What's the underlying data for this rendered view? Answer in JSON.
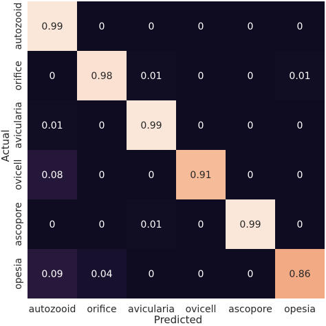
{
  "chart_data": {
    "type": "heatmap",
    "title": "",
    "xlabel": "Predicted",
    "ylabel": "Actual",
    "x_categories": [
      "autozooid",
      "orifice",
      "avicularia",
      "ovicell",
      "ascopore",
      "opesia"
    ],
    "y_categories": [
      "autozooid",
      "orifice",
      "avicularia",
      "ovicell",
      "ascopore",
      "opesia"
    ],
    "values": [
      [
        0.99,
        0,
        0,
        0,
        0,
        0
      ],
      [
        0,
        0.98,
        0.01,
        0,
        0,
        0.01
      ],
      [
        0.01,
        0,
        0.99,
        0,
        0,
        0
      ],
      [
        0.08,
        0,
        0,
        0.91,
        0,
        0
      ],
      [
        0,
        0,
        0.01,
        0,
        0.99,
        0
      ],
      [
        0.09,
        0.04,
        0,
        0,
        0,
        0.86
      ]
    ],
    "value_labels": [
      [
        "0.99",
        "0",
        "0",
        "0",
        "0",
        "0"
      ],
      [
        "0",
        "0.98",
        "0.01",
        "0",
        "0",
        "0.01"
      ],
      [
        "0.01",
        "0",
        "0.99",
        "0",
        "0",
        "0"
      ],
      [
        "0.08",
        "0",
        "0",
        "0.91",
        "0",
        "0"
      ],
      [
        "0",
        "0",
        "0.01",
        "0",
        "0.99",
        "0"
      ],
      [
        "0.09",
        "0.04",
        "0",
        "0",
        "0",
        "0.86"
      ]
    ],
    "colormap": {
      "low": "#0f0b20",
      "mid": "#6b2f5f",
      "high": "#fbece1"
    },
    "annotation_colors": {
      "dark_bg": "#ffffff",
      "light_bg": "#262626"
    }
  }
}
